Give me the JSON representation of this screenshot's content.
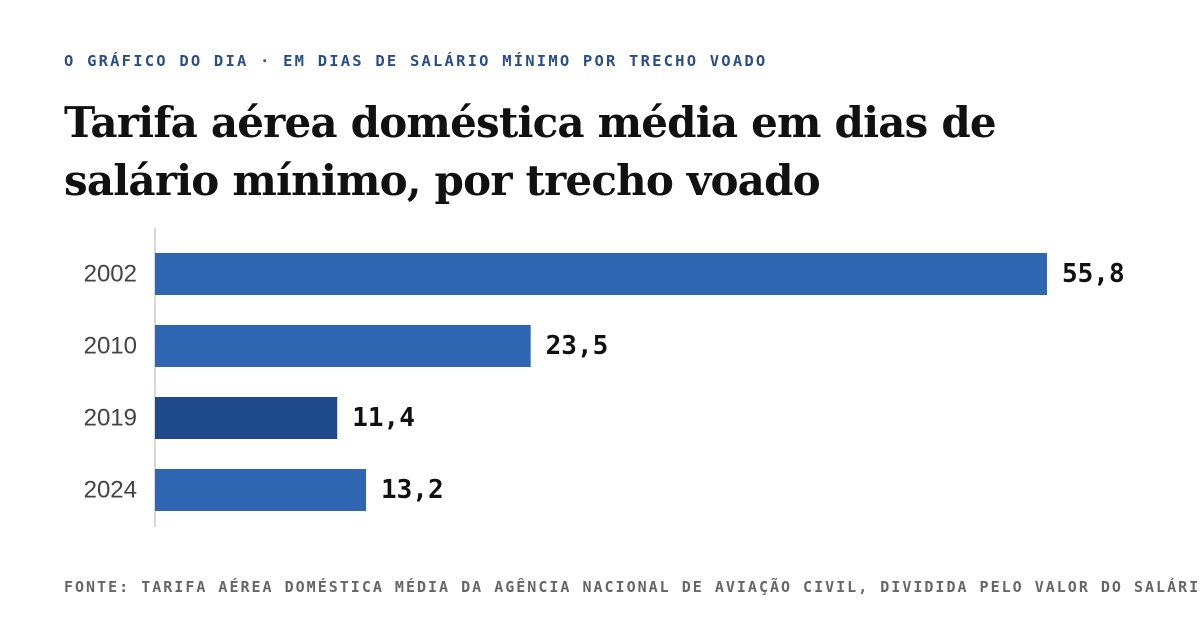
{
  "header": {
    "kicker": "O GRÁFICO DO DIA · EM DIAS DE SALÁRIO MÍNIMO POR TRECHO VOADO",
    "title": "Tarifa aérea doméstica média em dias de salário mínimo, por trecho voado"
  },
  "chart_data": {
    "type": "bar",
    "orientation": "horizontal",
    "title": "Tarifa aérea doméstica média em dias de salário mínimo, por trecho voado",
    "xlabel": "",
    "ylabel": "",
    "grid": false,
    "categories": [
      "2002",
      "2010",
      "2019",
      "2024"
    ],
    "values": [
      55.8,
      23.5,
      11.4,
      13.2
    ],
    "value_labels": [
      "55,8",
      "23,5",
      "11,4",
      "13,2"
    ],
    "xlim": [
      0,
      55.8
    ],
    "colors": {
      "default_bar": "#2e66b1",
      "highlight_bar": "#1e4a8b",
      "axis_line": "#cccccc",
      "category_text": "#444444",
      "value_text": "#111111"
    },
    "highlight": "2019"
  },
  "footer": {
    "source": "FONTE: TARIFA AÉREA DOMÉSTICA MÉDIA DA AGÊNCIA NACIONAL DE AVIAÇÃO CIVIL, DIVIDIDA PELO VALOR DO SALÁRIO MÍNIMO DIÁRIO"
  }
}
